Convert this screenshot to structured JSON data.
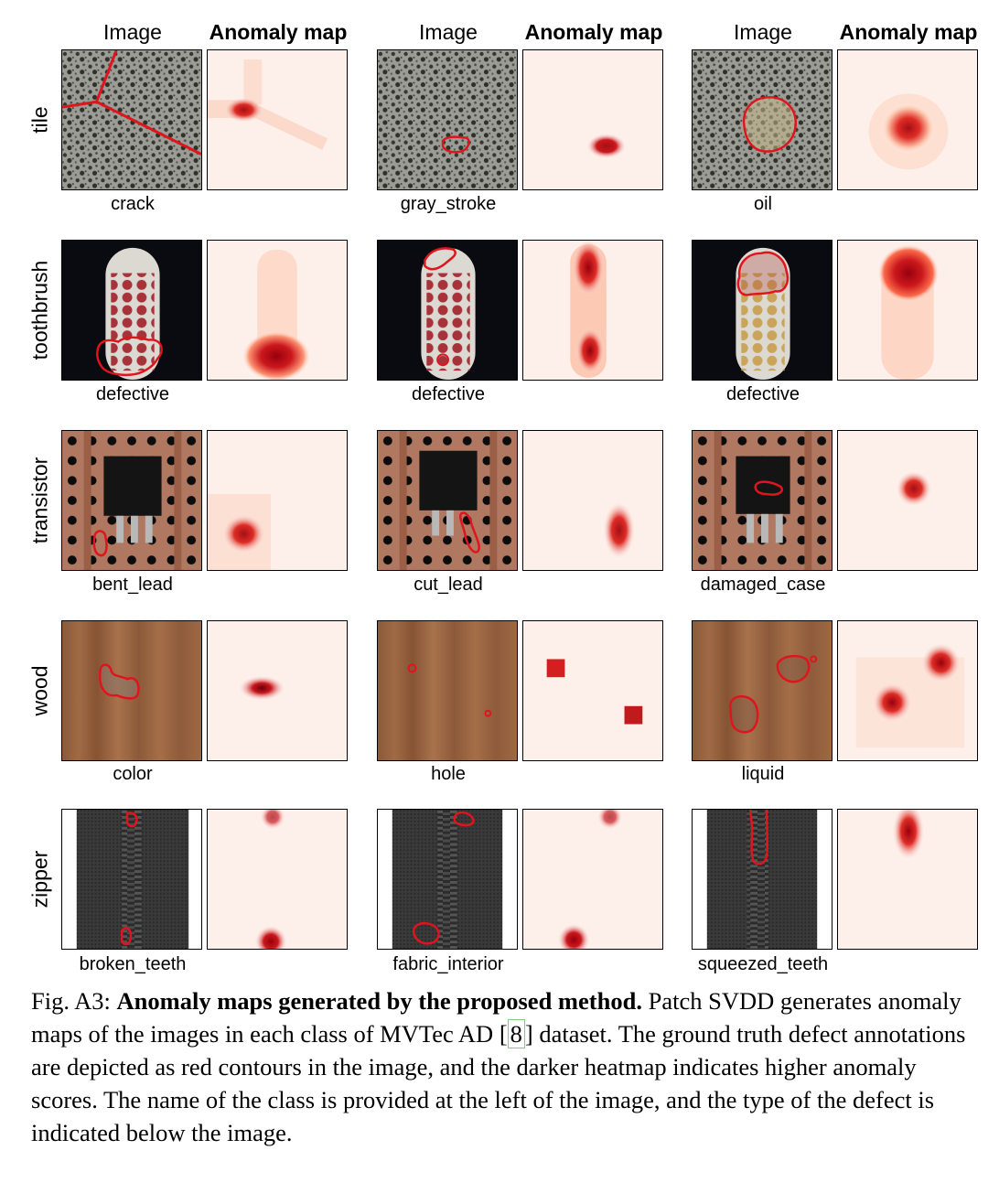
{
  "headers": {
    "image": "Image",
    "anomaly_map": "Anomaly map"
  },
  "rows": [
    {
      "class": "tile",
      "defects": [
        "crack",
        "gray_stroke",
        "oil"
      ]
    },
    {
      "class": "toothbrush",
      "defects": [
        "defective",
        "defective",
        "defective"
      ]
    },
    {
      "class": "transistor",
      "defects": [
        "bent_lead",
        "cut_lead",
        "damaged_case"
      ]
    },
    {
      "class": "wood",
      "defects": [
        "color",
        "hole",
        "liquid"
      ]
    },
    {
      "class": "zipper",
      "defects": [
        "broken_teeth",
        "fabric_interior",
        "squeezed_teeth"
      ]
    }
  ],
  "caption": {
    "prefix": "Fig. A3: ",
    "title": "Anomaly maps generated by the proposed method.",
    "text1": " Patch SVDD generates anomaly maps of the images in each class of MVTec AD ",
    "ref": "8",
    "text2": " dataset. The ground truth defect annotations are depicted as red contours in the image, and the darker heatmap indicates higher anomaly scores. The name of the class is provided at the left of the image, and the type of the defect is indicated below the image."
  },
  "colors": {
    "contour": "#e0141c",
    "heat": "#b2101a",
    "heat_bg": "#fdf0ea"
  }
}
